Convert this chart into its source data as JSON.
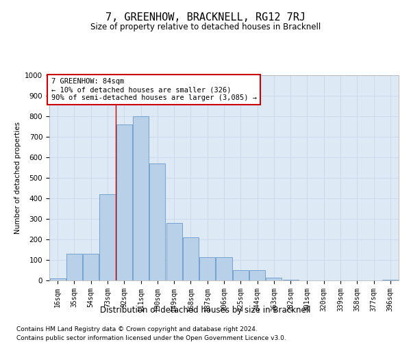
{
  "title": "7, GREENHOW, BRACKNELL, RG12 7RJ",
  "subtitle": "Size of property relative to detached houses in Bracknell",
  "xlabel": "Distribution of detached houses by size in Bracknell",
  "ylabel": "Number of detached properties",
  "categories": [
    "16sqm",
    "35sqm",
    "54sqm",
    "73sqm",
    "92sqm",
    "111sqm",
    "130sqm",
    "149sqm",
    "168sqm",
    "187sqm",
    "206sqm",
    "225sqm",
    "244sqm",
    "263sqm",
    "282sqm",
    "301sqm",
    "320sqm",
    "339sqm",
    "358sqm",
    "377sqm",
    "396sqm"
  ],
  "values": [
    10,
    130,
    130,
    420,
    760,
    800,
    570,
    280,
    210,
    115,
    115,
    50,
    50,
    15,
    5,
    0,
    0,
    0,
    0,
    0,
    5
  ],
  "bar_color": "#b8d0e8",
  "bar_edge_color": "#6699cc",
  "grid_color": "#c8d8ea",
  "bg_color": "#ddeaf5",
  "annotation_box_text": "7 GREENHOW: 84sqm\n← 10% of detached houses are smaller (326)\n90% of semi-detached houses are larger (3,085) →",
  "annotation_box_color": "#cc0000",
  "red_line_x": 3.5,
  "ylim": [
    0,
    1000
  ],
  "yticks": [
    0,
    100,
    200,
    300,
    400,
    500,
    600,
    700,
    800,
    900,
    1000
  ],
  "footnote1": "Contains HM Land Registry data © Crown copyright and database right 2024.",
  "footnote2": "Contains public sector information licensed under the Open Government Licence v3.0."
}
